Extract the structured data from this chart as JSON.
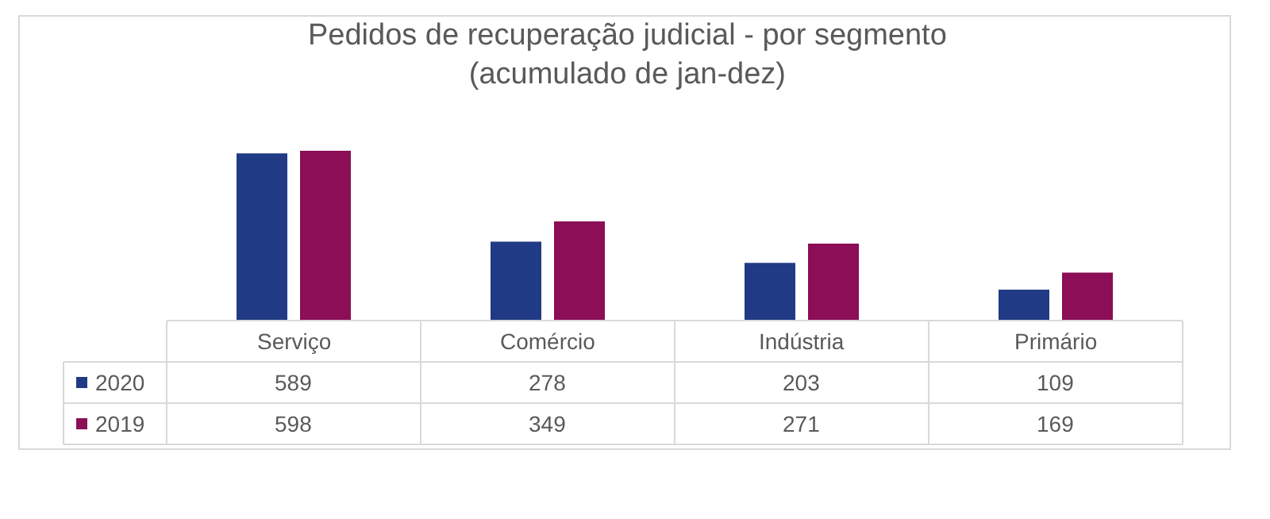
{
  "chart_data": {
    "type": "bar",
    "title": "Pedidos de recuperação judicial - por segmento\n(acumulado de jan-dez)",
    "categories": [
      "Serviço",
      "Comércio",
      "Indústria",
      "Primário"
    ],
    "series": [
      {
        "name": "2020",
        "color": "#213a86",
        "values": [
          589,
          278,
          203,
          109
        ]
      },
      {
        "name": "2019",
        "color": "#8b0e56",
        "values": [
          598,
          349,
          271,
          169
        ]
      }
    ],
    "legend": "bottom left",
    "data_labels": true
  }
}
